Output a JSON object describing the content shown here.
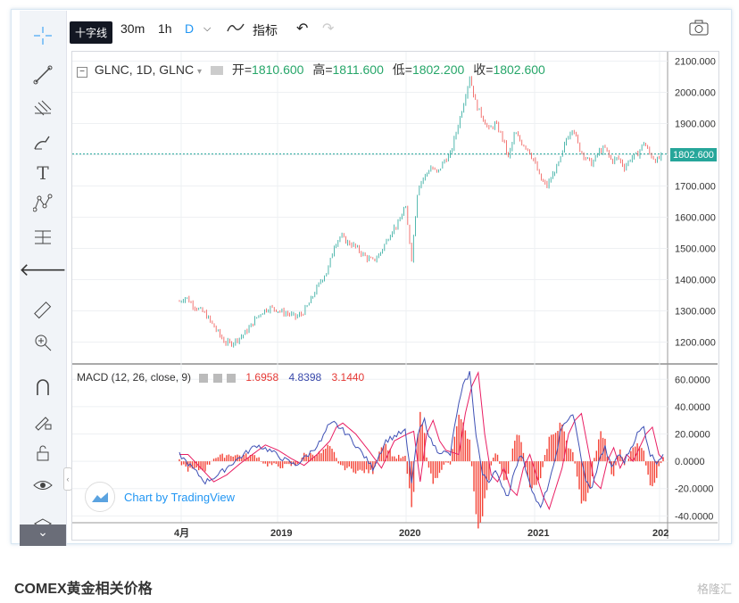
{
  "toolbar_tooltip": "十字线",
  "timeframes": [
    "30m",
    "1h",
    "D"
  ],
  "indicators_label": "指标",
  "symbol": "GLNC, 1D, GLNC",
  "ohlc": {
    "open_label": "开=",
    "open": "1810.600",
    "high_label": "高=",
    "high": "1811.600",
    "low_label": "低=",
    "low": "1802.200",
    "close_label": "收=",
    "close": "1802.600"
  },
  "current_price": "1802.600",
  "macd": {
    "label": "MACD (12, 26, close, 9)",
    "v1": "1.6958",
    "v2": "4.8398",
    "v3": "3.1440"
  },
  "watermark": "Chart by TradingView",
  "bottom_title": "COMEX黄金相关价格",
  "brand": "格隆汇",
  "colors": {
    "up": "#26a69a",
    "down": "#ef5350",
    "macd_line": "#3f51b5",
    "signal_line": "#e91e63",
    "hist": "#f44336"
  },
  "chart_data": {
    "type": "line",
    "price_axis_ticks": [
      "2100.000",
      "2000.000",
      "1900.000",
      "1800.000",
      "1700.000",
      "1600.000",
      "1500.000",
      "1400.000",
      "1300.000",
      "1200.000"
    ],
    "macd_axis_ticks": [
      "60.0000",
      "40.0000",
      "20.0000",
      "0.0000",
      "-20.0000",
      "-40.0000"
    ],
    "x_ticks": [
      "4月",
      "2019",
      "2020",
      "2021",
      "202"
    ],
    "ylim": [
      1130,
      2130
    ],
    "price_series": [
      [
        0,
        1330
      ],
      [
        3,
        1345
      ],
      [
        6,
        1320
      ],
      [
        9,
        1305
      ],
      [
        12,
        1290
      ],
      [
        15,
        1260
      ],
      [
        18,
        1230
      ],
      [
        21,
        1200
      ],
      [
        24,
        1195
      ],
      [
        27,
        1210
      ],
      [
        30,
        1225
      ],
      [
        33,
        1250
      ],
      [
        36,
        1280
      ],
      [
        39,
        1300
      ],
      [
        42,
        1310
      ],
      [
        45,
        1305
      ],
      [
        48,
        1295
      ],
      [
        51,
        1290
      ],
      [
        54,
        1280
      ],
      [
        57,
        1290
      ],
      [
        60,
        1320
      ],
      [
        63,
        1360
      ],
      [
        66,
        1400
      ],
      [
        69,
        1430
      ],
      [
        72,
        1510
      ],
      [
        75,
        1540
      ],
      [
        78,
        1520
      ],
      [
        81,
        1510
      ],
      [
        84,
        1490
      ],
      [
        87,
        1470
      ],
      [
        90,
        1460
      ],
      [
        93,
        1480
      ],
      [
        96,
        1520
      ],
      [
        99,
        1560
      ],
      [
        102,
        1580
      ],
      [
        105,
        1640
      ],
      [
        108,
        1470
      ],
      [
        111,
        1700
      ],
      [
        114,
        1730
      ],
      [
        117,
        1760
      ],
      [
        120,
        1740
      ],
      [
        123,
        1780
      ],
      [
        126,
        1800
      ],
      [
        129,
        1880
      ],
      [
        132,
        1960
      ],
      [
        135,
        2050
      ],
      [
        138,
        1960
      ],
      [
        141,
        1920
      ],
      [
        144,
        1880
      ],
      [
        147,
        1900
      ],
      [
        150,
        1860
      ],
      [
        153,
        1790
      ],
      [
        156,
        1870
      ],
      [
        159,
        1840
      ],
      [
        162,
        1820
      ],
      [
        165,
        1780
      ],
      [
        168,
        1720
      ],
      [
        171,
        1700
      ],
      [
        174,
        1740
      ],
      [
        177,
        1780
      ],
      [
        180,
        1850
      ],
      [
        183,
        1890
      ],
      [
        186,
        1820
      ],
      [
        189,
        1790
      ],
      [
        192,
        1770
      ],
      [
        195,
        1810
      ],
      [
        198,
        1820
      ],
      [
        201,
        1780
      ],
      [
        204,
        1790
      ],
      [
        207,
        1760
      ],
      [
        210,
        1790
      ],
      [
        213,
        1800
      ],
      [
        216,
        1840
      ],
      [
        219,
        1800
      ],
      [
        222,
        1780
      ],
      [
        225,
        1802
      ]
    ],
    "macd_series": [
      [
        0,
        5
      ],
      [
        6,
        -5
      ],
      [
        12,
        -15
      ],
      [
        18,
        -10
      ],
      [
        24,
        -2
      ],
      [
        30,
        5
      ],
      [
        36,
        12
      ],
      [
        42,
        8
      ],
      [
        48,
        2
      ],
      [
        54,
        -3
      ],
      [
        60,
        5
      ],
      [
        66,
        15
      ],
      [
        69,
        25
      ],
      [
        72,
        28
      ],
      [
        78,
        20
      ],
      [
        84,
        8
      ],
      [
        90,
        -5
      ],
      [
        96,
        15
      ],
      [
        102,
        20
      ],
      [
        105,
        22
      ],
      [
        108,
        -15
      ],
      [
        111,
        20
      ],
      [
        114,
        30
      ],
      [
        117,
        15
      ],
      [
        120,
        8
      ],
      [
        126,
        5
      ],
      [
        129,
        35
      ],
      [
        132,
        55
      ],
      [
        135,
        65
      ],
      [
        138,
        20
      ],
      [
        141,
        -10
      ],
      [
        144,
        -15
      ],
      [
        147,
        -5
      ],
      [
        150,
        -20
      ],
      [
        153,
        -25
      ],
      [
        156,
        -5
      ],
      [
        159,
        5
      ],
      [
        162,
        -10
      ],
      [
        165,
        -25
      ],
      [
        168,
        -35
      ],
      [
        171,
        -20
      ],
      [
        174,
        -5
      ],
      [
        177,
        20
      ],
      [
        180,
        30
      ],
      [
        183,
        35
      ],
      [
        186,
        10
      ],
      [
        189,
        -15
      ],
      [
        192,
        -20
      ],
      [
        195,
        0
      ],
      [
        198,
        10
      ],
      [
        201,
        -5
      ],
      [
        204,
        5
      ],
      [
        207,
        0
      ],
      [
        210,
        10
      ],
      [
        213,
        20
      ],
      [
        216,
        25
      ],
      [
        219,
        5
      ],
      [
        222,
        0
      ],
      [
        225,
        5
      ]
    ],
    "macd_ylim": [
      -45,
      70
    ]
  }
}
